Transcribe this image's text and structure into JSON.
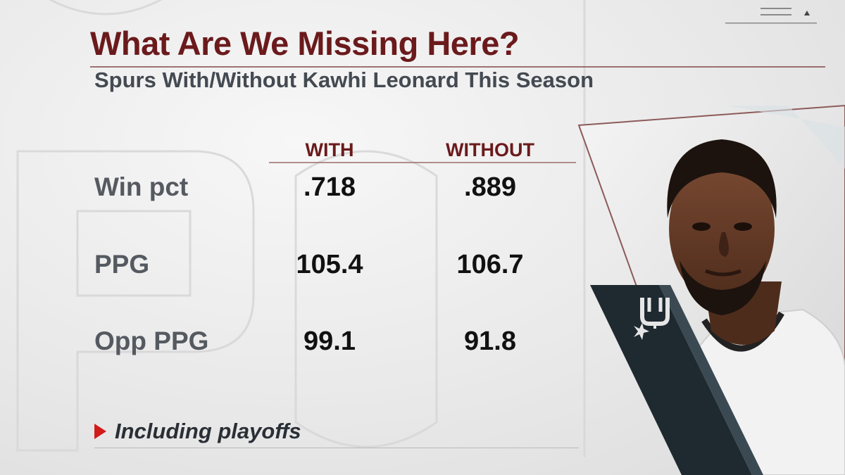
{
  "title": "What Are We Missing Here?",
  "subtitle": "Spurs With/Without Kawhi Leonard This Season",
  "columns": {
    "with": "WITH",
    "without": "WITHOUT"
  },
  "rows": [
    {
      "label": "Win pct",
      "with": ".718",
      "without": ".889"
    },
    {
      "label": "PPG",
      "with": "105.4",
      "without": "106.7"
    },
    {
      "label": "Opp PPG",
      "with": "99.1",
      "without": "91.8"
    }
  ],
  "footnote": "Including playoffs",
  "colors": {
    "title": "#6b1a1c",
    "subtitle": "#444a52",
    "accent_red": "#d11b1b",
    "panel_dark": "#1f2a30"
  }
}
